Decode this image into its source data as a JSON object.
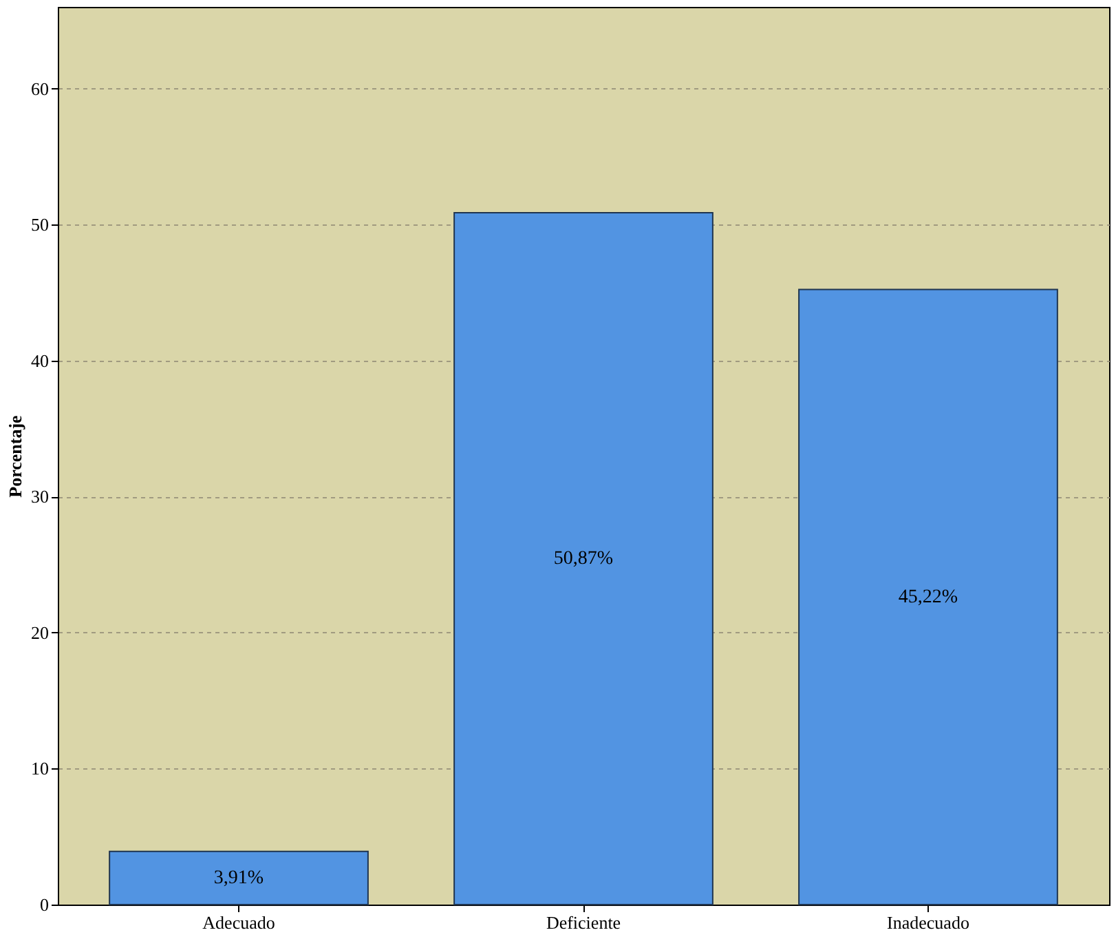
{
  "chart_data": {
    "type": "bar",
    "ylabel": "Porcentaje",
    "categories": [
      "Adecuado",
      "Deficiente",
      "Inadecuado"
    ],
    "values": [
      3.91,
      50.87,
      45.22
    ],
    "value_labels": [
      "3,91%",
      "50,87%",
      "45,22%"
    ],
    "color": "#5294e2",
    "ylim": [
      0,
      66
    ],
    "yticks": [
      0,
      10,
      20,
      30,
      40,
      50,
      60
    ],
    "grid": "y"
  }
}
